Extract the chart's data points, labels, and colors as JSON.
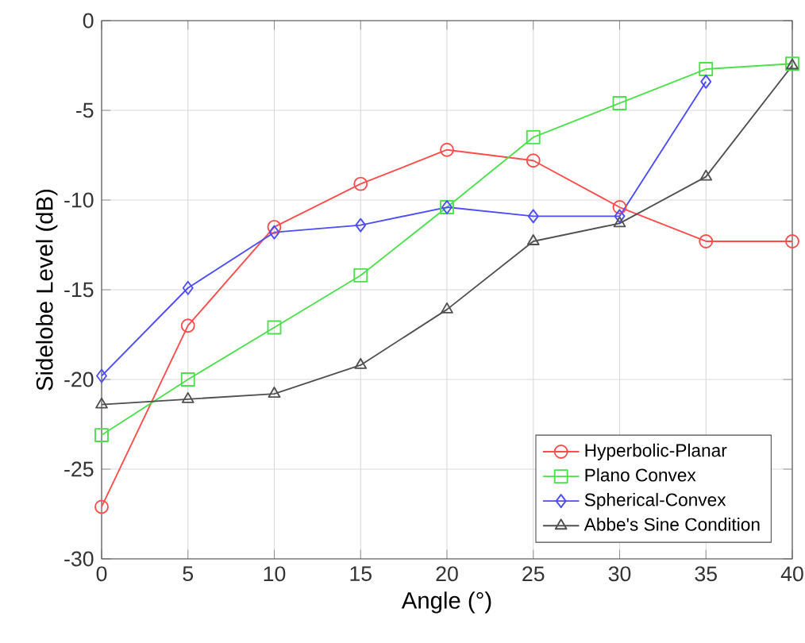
{
  "chart_data": {
    "type": "line",
    "xlabel": "Angle (°)",
    "ylabel": "Sidelobe Level (dB)",
    "x": [
      0,
      5,
      10,
      15,
      20,
      25,
      30,
      35,
      40
    ],
    "series": [
      {
        "name": "Hyperbolic-Planar",
        "color": "#ff4d4d",
        "marker": "circle",
        "values": [
          -27.1,
          -17.0,
          -11.5,
          -9.1,
          -7.2,
          -7.8,
          -10.4,
          -12.3,
          -12.3
        ]
      },
      {
        "name": "Plano Convex",
        "color": "#4ddf4d",
        "marker": "square",
        "values": [
          -23.1,
          -20.0,
          -17.1,
          -14.2,
          -10.4,
          -6.5,
          -4.6,
          -2.7,
          -2.4
        ]
      },
      {
        "name": "Spherical-Convex",
        "color": "#4d4dff",
        "marker": "diamond",
        "values": [
          -19.8,
          -14.9,
          -11.8,
          -11.4,
          -10.4,
          -10.9,
          -10.9,
          -3.4,
          null
        ]
      },
      {
        "name": "Abbe's Sine Condition",
        "color": "#505050",
        "marker": "triangle",
        "values": [
          -21.4,
          -21.1,
          -20.8,
          -19.2,
          -16.1,
          -12.3,
          -11.3,
          -8.7,
          -2.5
        ]
      }
    ],
    "xlim": [
      0,
      40
    ],
    "xticks": [
      0,
      5,
      10,
      15,
      20,
      25,
      30,
      35,
      40
    ],
    "ylim": [
      -30,
      0
    ],
    "yticks": [
      -30,
      -25,
      -20,
      -15,
      -10,
      -5,
      0
    ],
    "grid": true,
    "legend": "bottom right",
    "line_style": "solid"
  }
}
